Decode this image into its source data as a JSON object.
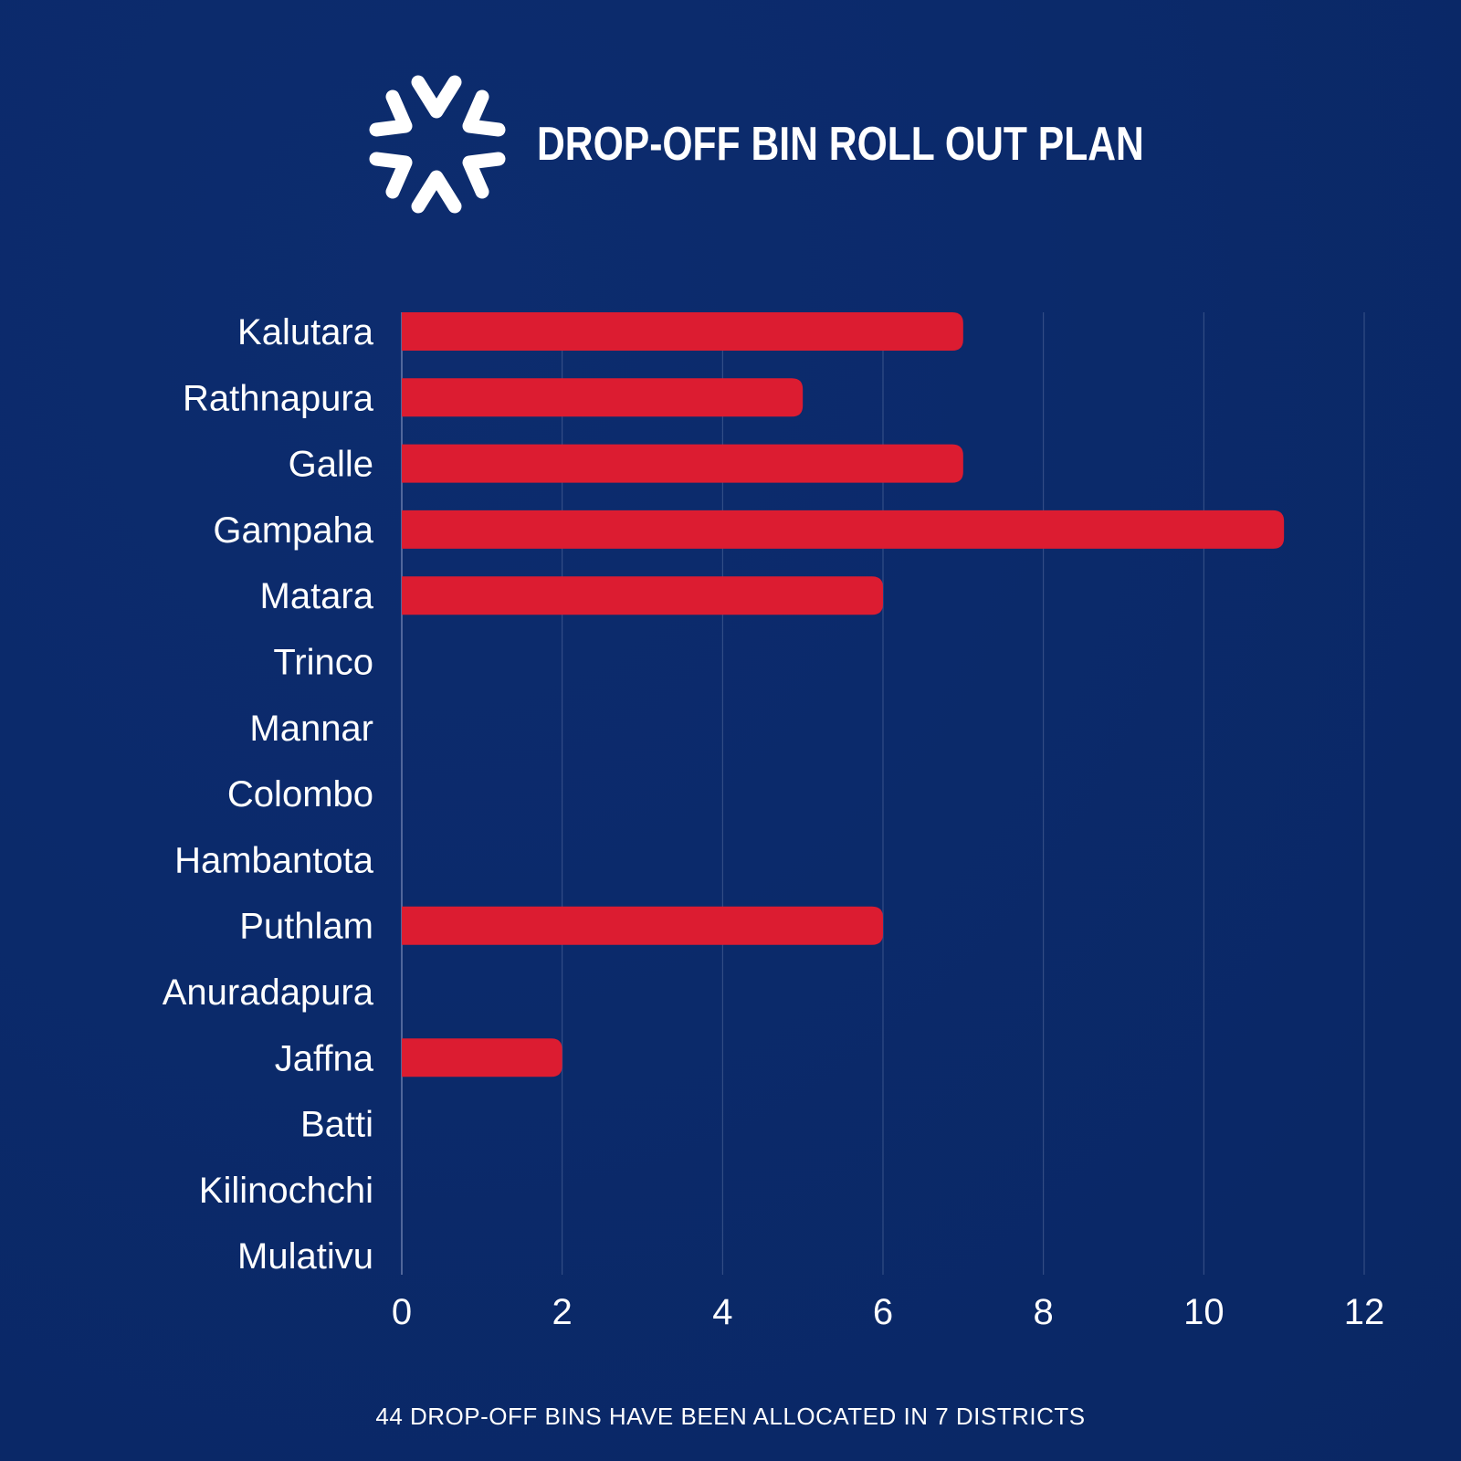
{
  "header": {
    "title": "DROP-OFF BIN ROLL OUT PLAN",
    "logo_icon": "asterisk-chevron-logo-icon"
  },
  "footer": {
    "text": "44 DROP-OFF BINS HAVE BEEN ALLOCATED IN 7 DISTRICTS"
  },
  "colors": {
    "background": "#0b2a6b",
    "bar": "#dc1c31",
    "text": "#ffffff",
    "grid": "#5a6fa0"
  },
  "chart_data": {
    "type": "bar",
    "orientation": "horizontal",
    "categories": [
      "Kalutara",
      "Rathnapura",
      "Galle",
      "Gampaha",
      "Matara",
      "Trinco",
      "Mannar",
      "Colombo",
      "Hambantota",
      "Puthlam",
      "Anuradapura",
      "Jaffna",
      "Batti",
      "Kilinochchi",
      "Mulativu"
    ],
    "values": [
      7,
      5,
      7,
      11,
      6,
      0,
      0,
      0,
      0,
      6,
      0,
      2,
      0,
      0,
      0
    ],
    "xlim": [
      0,
      12
    ],
    "xticks": [
      "0",
      "2",
      "4",
      "6",
      "8",
      "10",
      "12"
    ],
    "grid": "vertical",
    "title": "",
    "xlabel": "",
    "ylabel": ""
  }
}
